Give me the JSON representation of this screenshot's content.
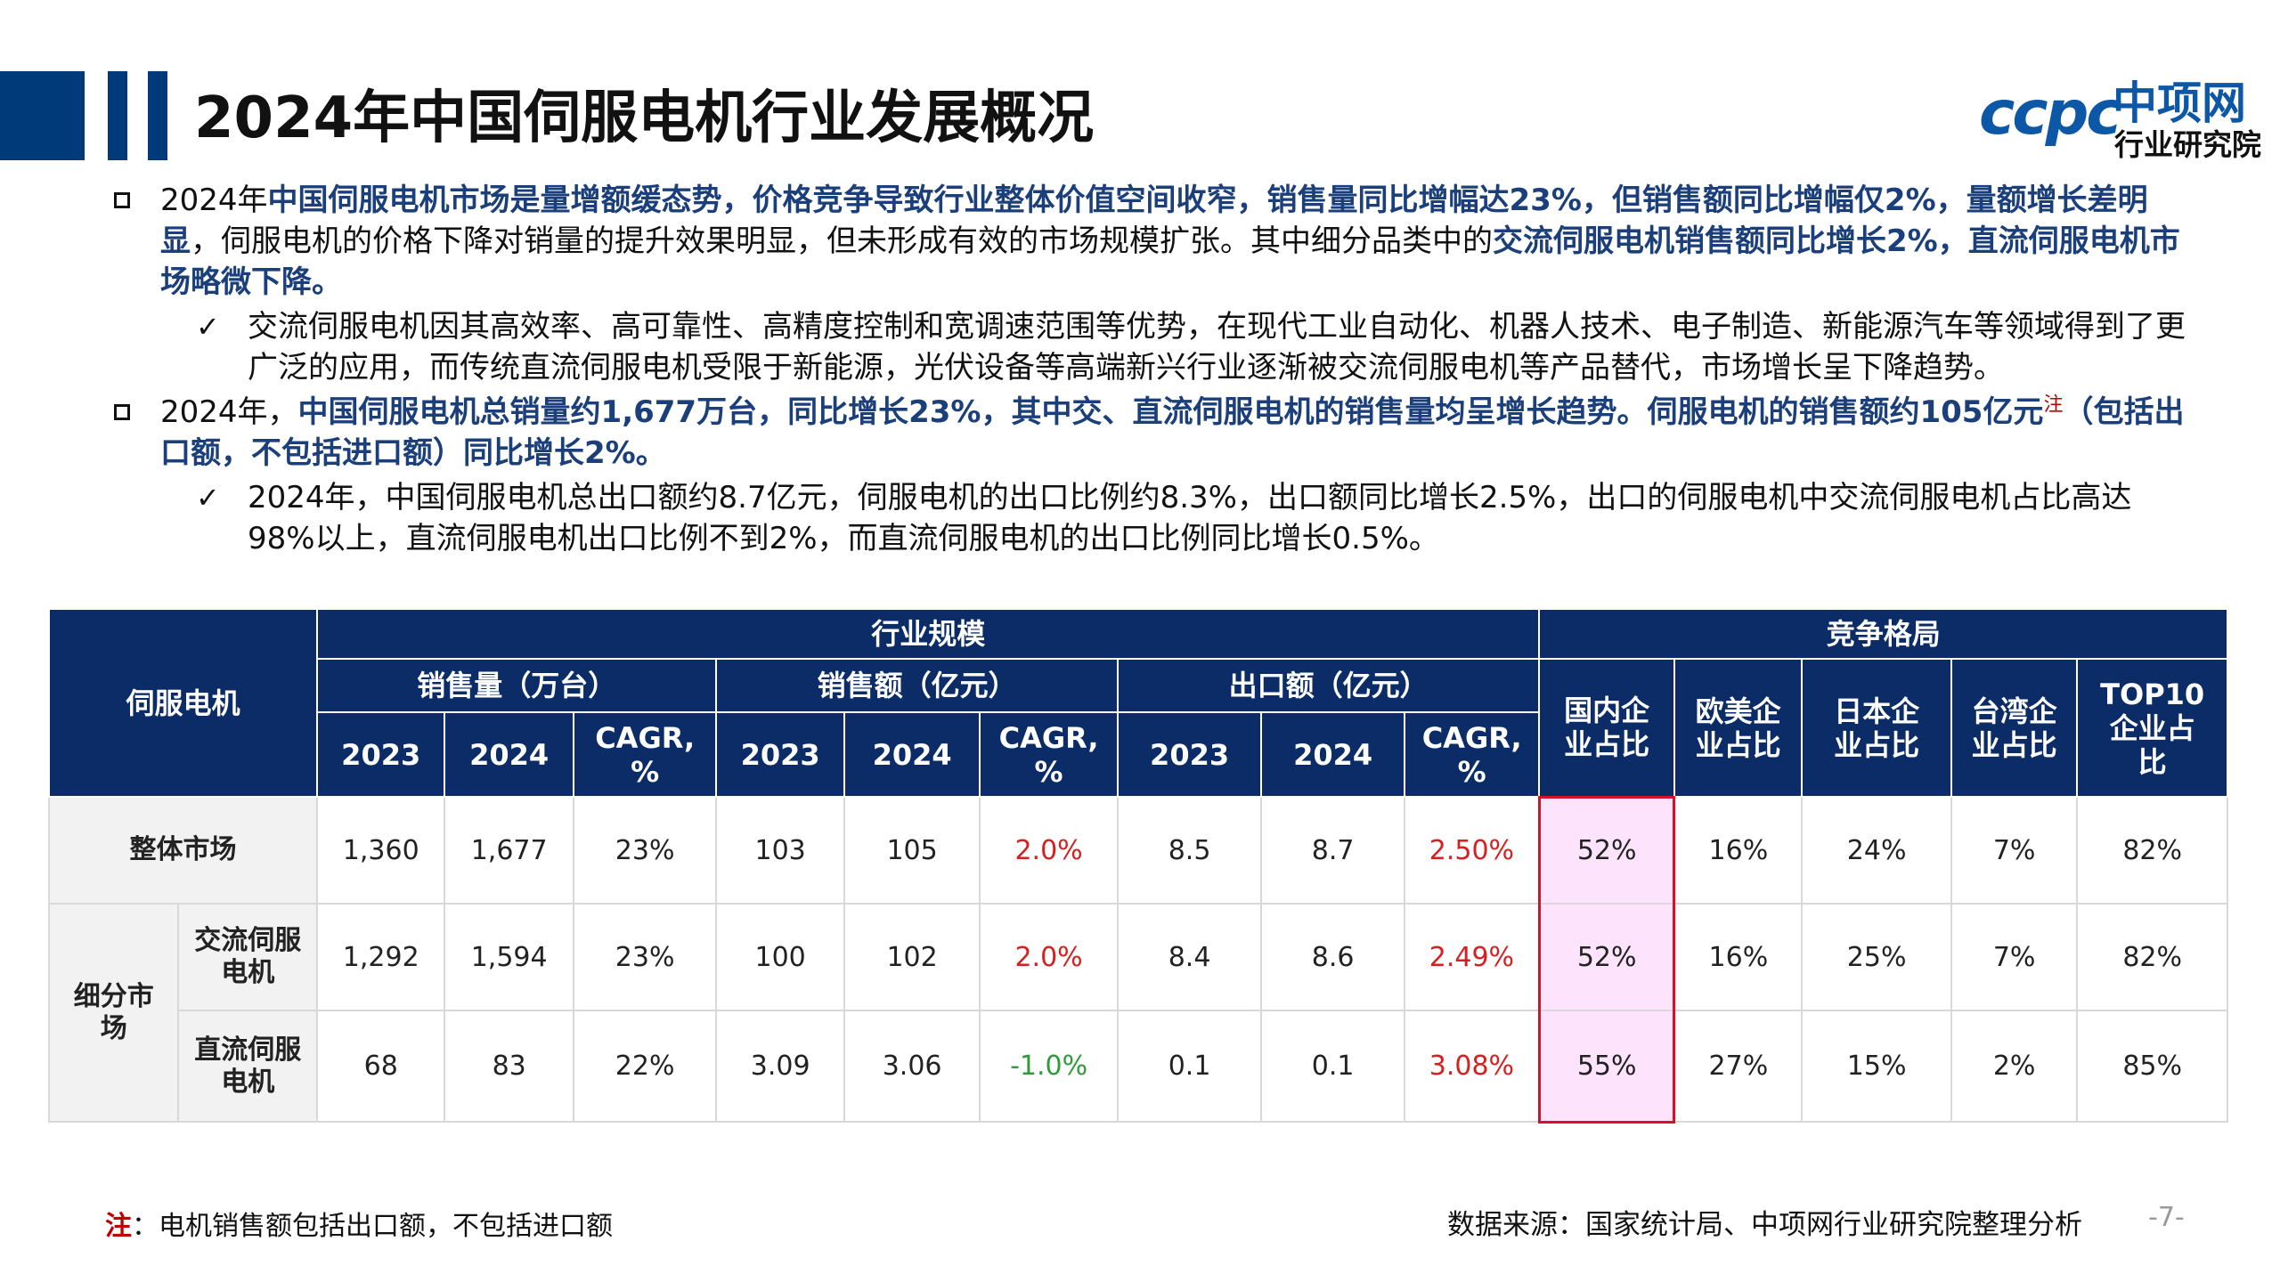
{
  "header": {
    "title": "2024年中国伺服电机行业发展概况",
    "logo": {
      "mark": "ccpc",
      "name": "中项网",
      "sub": "行业研究院"
    }
  },
  "bullets": [
    {
      "segments": [
        {
          "t": "2024年",
          "b": false
        },
        {
          "t": "中国伺服电机市场是量增额缓态势，价格竞争导致行业整体价值空间收窄，销售量同比增幅达23%，但销售额同比增幅仅2%，量额增长差明显",
          "b": true
        },
        {
          "t": "，伺服电机的价格下降对销量的提升效果明显，但未形成有效的市场规模扩张。其中细分品类中的",
          "b": false
        },
        {
          "t": "交流伺服电机销售额同比增长2%，直流伺服电机市场略微下降。",
          "b": true
        }
      ],
      "sub": "交流伺服电机因其高效率、高可靠性、高精度控制和宽调速范围等优势，在现代工业自动化、机器人技术、电子制造、新能源汽车等领域得到了更广泛的应用，而传统直流伺服电机受限于新能源，光伏设备等高端新兴行业逐渐被交流伺服电机等产品替代，市场增长呈下降趋势。"
    },
    {
      "segments": [
        {
          "t": "2024年，",
          "b": false
        },
        {
          "t": "中国伺服电机总销量约1,677万台，同比增长23%，其中交、直流伺服电机的销售量均呈增长趋势。伺服电机的销售额约105亿元",
          "b": true
        }
      ],
      "note_mark": "注",
      "tail": "（包括出口额，不包括进口额）同比增长2%。",
      "sub": "2024年，中国伺服电机总出口额约8.7亿元，伺服电机的出口比例约8.3%，出口额同比增长2.5%，出口的伺服电机中交流伺服电机占比高达98%以上，直流伺服电机出口比例不到2%，而直流伺服电机的出口比例同比增长0.5%。"
    }
  ],
  "table": {
    "corner": "伺服电机",
    "group_scale": "行业规模",
    "group_comp": "竞争格局",
    "sub_sales": "销售量（万台）",
    "sub_revenue": "销售额（亿元）",
    "sub_export": "出口额（亿元）",
    "years": [
      "2023",
      "2024",
      "CAGR,\n%"
    ],
    "comp_cols": [
      "国内企\n业占比",
      "欧美企\n业占比",
      "日本企\n业占比",
      "台湾企\n业占比",
      "TOP10\n企业占\n比"
    ],
    "seg_label": "细分市\n场",
    "rows": [
      {
        "label": "整体市场",
        "cells": [
          "1,360",
          "1,677",
          "23%",
          "103",
          "105",
          "2.0%",
          "8.5",
          "8.7",
          "2.50%",
          "52%",
          "16%",
          "24%",
          "7%",
          "82%"
        ]
      },
      {
        "label": "交流伺服\n电机",
        "cells": [
          "1,292",
          "1,594",
          "23%",
          "100",
          "102",
          "2.0%",
          "8.4",
          "8.6",
          "2.49%",
          "52%",
          "16%",
          "25%",
          "7%",
          "82%"
        ]
      },
      {
        "label": "直流伺服\n电机",
        "cells": [
          "68",
          "83",
          "22%",
          "3.09",
          "3.06",
          "-1.0%",
          "0.1",
          "0.1",
          "3.08%",
          "55%",
          "27%",
          "15%",
          "2%",
          "85%"
        ]
      }
    ]
  },
  "footer": {
    "note_label": "注",
    "note_text": "：电机销售额包括出口额，不包括进口额",
    "source": "数据来源：国家统计局、中项网行业研究院整理分析",
    "page": "-7-"
  },
  "colors": {
    "header_blue": "#003a78",
    "table_header": "#0b2c66",
    "highlight_text": "#1b3f7a",
    "negative": "#2e9c3a",
    "positive_red": "#d62020",
    "highlight_fill": "#fde3fb",
    "highlight_border": "#d4122b"
  }
}
